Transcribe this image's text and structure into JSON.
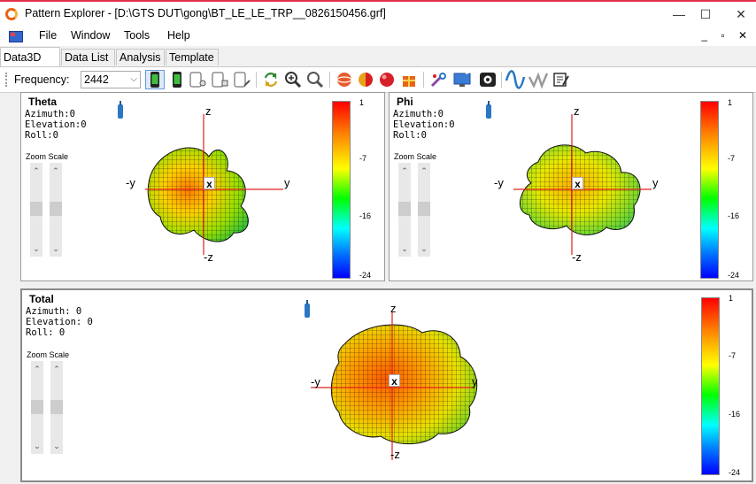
{
  "window": {
    "title": "Pattern Explorer - [D:\\GTS DUT\\gong\\BT_LE_LE_TRP__0826150456.grf]",
    "minimize": "—",
    "maximize": "☐",
    "close": "✕",
    "app_icon": "pattern-explorer-logo"
  },
  "menubar": {
    "items": [
      "File",
      "Window",
      "Tools",
      "Help"
    ],
    "mdi_controls": "_ ▫ ✕"
  },
  "tabs": [
    {
      "label": "Data3D",
      "active": true
    },
    {
      "label": "Data List",
      "active": false
    },
    {
      "label": "Analysis",
      "active": false
    },
    {
      "label": "Template",
      "active": false
    }
  ],
  "toolbar": {
    "frequency_label": "Frequency:",
    "frequency_value": "2442",
    "buttons": [
      "phone-green-icon",
      "phone-green-icon",
      "device-icon",
      "device-icon",
      "device-icon",
      "refresh-icon",
      "zoom-in-icon",
      "zoom-out-icon",
      "sphere-red-icon",
      "sphere-half-icon",
      "sphere-solid-icon",
      "gift-icon",
      "tools-icon",
      "monitor-icon",
      "camera-icon",
      "wave-icon",
      "check-wave-icon",
      "edit-note-icon"
    ]
  },
  "panels": {
    "theta": {
      "title": "Theta",
      "azimuth": "Azimuth:0",
      "elevation": "Elevation:0",
      "roll": "Roll:0",
      "zoom_label": "Zoom Scale",
      "axis_z": "z",
      "axis_neg_z": "-z",
      "axis_y": "y",
      "axis_neg_y": "-y",
      "axis_x": "x",
      "colorbar_ticks": [
        "1",
        "-7",
        "-16",
        "-24"
      ]
    },
    "phi": {
      "title": "Phi",
      "azimuth": "Azimuth:0",
      "elevation": "Elevation:0",
      "roll": "Roll:0",
      "zoom_label": "Zoom Scale",
      "axis_z": "z",
      "axis_neg_z": "-z",
      "axis_y": "y",
      "axis_neg_y": "-y",
      "axis_x": "x",
      "colorbar_ticks": [
        "1",
        "-7",
        "-16",
        "-24"
      ]
    },
    "total": {
      "title": "Total",
      "azimuth": "Azimuth: 0",
      "elevation": "Elevation: 0",
      "roll": "Roll: 0",
      "zoom_label": "Zoom Scale",
      "axis_z": "z",
      "axis_neg_z": "-z",
      "axis_y": "y",
      "axis_neg_y": "-y",
      "axis_x": "x",
      "colorbar_ticks": [
        "1",
        "-7",
        "-16",
        "-24"
      ]
    }
  },
  "colors": {
    "accent_titlebar": "#e0304a",
    "axis_red": "#e02020",
    "probe_blue": "#2a77c4"
  }
}
